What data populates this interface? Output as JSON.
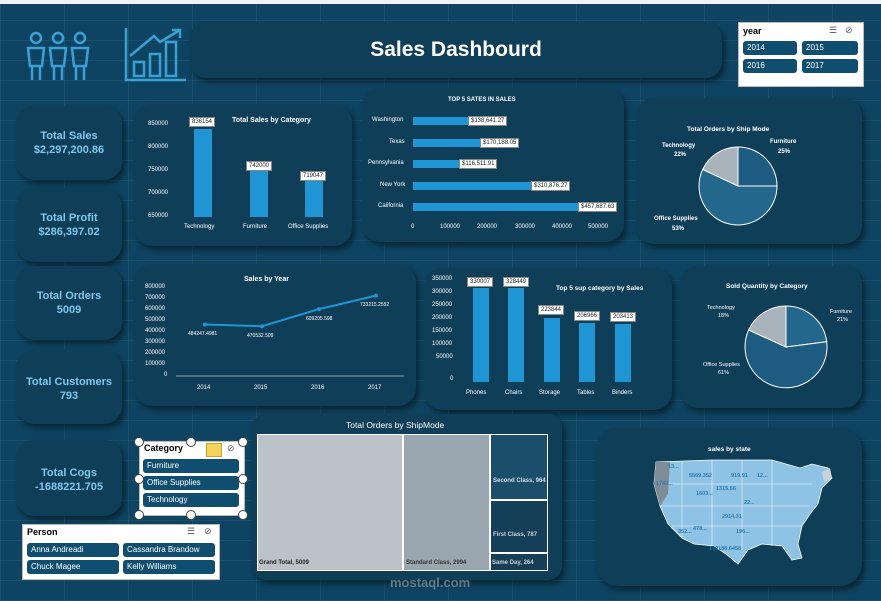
{
  "title": "Sales Dashbourd",
  "kpis": [
    {
      "label": "Total Sales",
      "value": "$2,297,200.86"
    },
    {
      "label": "Total Profit",
      "value": "$286,397.02"
    },
    {
      "label": "Total Orders",
      "value": "5009"
    },
    {
      "label": "Total Customers",
      "value": "793"
    },
    {
      "label": "Total Cogs",
      "value": "-1688221.705"
    }
  ],
  "year_slicer": {
    "title": "year",
    "options": [
      "2014",
      "2015",
      "2016",
      "2017"
    ]
  },
  "category_slicer": {
    "title": "Category",
    "options": [
      "Furniture",
      "Office Supplies",
      "Technology"
    ]
  },
  "person_slicer": {
    "title": "Person",
    "options": [
      "Anna Andreadi",
      "Cassandra Brandow",
      "Chuck Magee",
      "Kelly Williams"
    ]
  },
  "watermark": "mostaql.com",
  "colors": {
    "background": "#0e4461",
    "card": "#0f3e58",
    "bar": "#1f95d3",
    "accent": "#7ec8ee",
    "pie_dark": "#1d5c80",
    "pie_mid": "#24678c",
    "pie_light": "#a8b3bb"
  },
  "chart_data": [
    {
      "type": "bar",
      "title": "Total Sales by Category",
      "categories": [
        "Technology",
        "Furniture",
        "Office Supplies"
      ],
      "values": [
        836154,
        742000,
        719047
      ],
      "data_labels": [
        "836154",
        "742000",
        "719047"
      ],
      "yticks": [
        "850000",
        "800000",
        "750000",
        "700000",
        "650000"
      ],
      "ylim": [
        650000,
        850000
      ]
    },
    {
      "type": "bar",
      "orientation": "horizontal",
      "title": "TOP 5 SATES IN SALES",
      "categories": [
        "Washington",
        "Texas",
        "Pennsylvania",
        "New York",
        "California"
      ],
      "values": [
        138641.27,
        170188.05,
        116511.91,
        310876.27,
        457687.63
      ],
      "data_labels": [
        "$138,641.27",
        "$170,188.05",
        "$116,511.91",
        "$310,876.27",
        "$457,687.63"
      ],
      "xticks": [
        "0",
        "100000",
        "200000",
        "300000",
        "400000",
        "500000"
      ],
      "xlim": [
        0,
        500000
      ]
    },
    {
      "type": "pie",
      "title": "Total Orders by Ship Mode",
      "labels": [
        "Technology",
        "Furniture",
        "Office Supplies"
      ],
      "percent_labels": [
        "22%",
        "25%",
        "53%"
      ],
      "values": [
        22,
        25,
        53
      ]
    },
    {
      "type": "line",
      "title": "Sales by Year",
      "x": [
        "2014",
        "2015",
        "2016",
        "2017"
      ],
      "values": [
        484247.4981,
        470532.509,
        609205.598,
        733215.2552
      ],
      "data_labels": [
        "484247.4981",
        "470532.509",
        "609205.598",
        "733215.2552"
      ],
      "yticks": [
        "800000",
        "700000",
        "600000",
        "500000",
        "400000",
        "300000",
        "200000",
        "100000",
        "0"
      ],
      "ylim": [
        0,
        800000
      ]
    },
    {
      "type": "bar",
      "title": "Top 5 sup category by Sales",
      "categories": [
        "Phones",
        "Chairs",
        "Storage",
        "Tables",
        "Binders"
      ],
      "values": [
        330007,
        328449,
        223844,
        206966,
        203413
      ],
      "data_labels": [
        "330007",
        "328449",
        "223844",
        "206966",
        "203413"
      ],
      "yticks": [
        "350000",
        "300000",
        "250000",
        "200000",
        "150000",
        "100000",
        "50000",
        "0"
      ],
      "ylim": [
        0,
        350000
      ]
    },
    {
      "type": "pie",
      "title": "Sold Quantity by Category",
      "labels": [
        "Technology",
        "Furniture",
        "Office Supplies"
      ],
      "percent_labels": [
        "18%",
        "21%",
        "61%"
      ],
      "values": [
        18,
        21,
        61
      ]
    },
    {
      "type": "treemap",
      "title": "Total Orders by ShipMode",
      "items": [
        {
          "label": "Grand Total",
          "value": 5009,
          "text": "Grand Total, 5009"
        },
        {
          "label": "Standard Class",
          "value": 2994,
          "text": "Standard Class, 2994"
        },
        {
          "label": "Second Class",
          "value": 964,
          "text": "Second Class, 964"
        },
        {
          "label": "First Class",
          "value": 787,
          "text": "First Class, 787"
        },
        {
          "label": "Same Day",
          "value": 264,
          "text": "Same Day, 264"
        }
      ]
    },
    {
      "type": "map",
      "title": "sales by state",
      "labels": [
        "13...",
        "1743...",
        "5569.352",
        "919.91",
        "12...",
        "1315.56",
        "1603...",
        "22...",
        "2914.31",
        "352...",
        "478...",
        "179188.6458",
        "196..."
      ]
    }
  ]
}
